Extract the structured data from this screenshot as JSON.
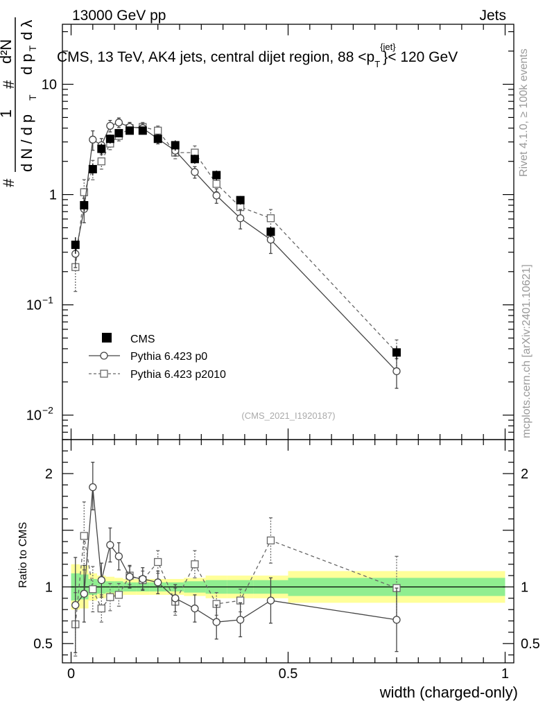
{
  "header": {
    "left": "13000 GeV pp",
    "right": "Jets"
  },
  "side_labels": {
    "rivet": "Rivet 4.1.0, ≥ 100k events",
    "mcplots": "mcplots.cern.ch [arXiv:2401.10621]"
  },
  "watermark": "(CMS_2021_I1920187)",
  "colors": {
    "data": "#000000",
    "p0": "#444444",
    "p2010": "#666666",
    "band_inner": "#90ee90",
    "band_outer": "#ffff99"
  },
  "chart_data": [
    {
      "type": "scatter",
      "title": "CMS, 13 TeV, AK4 jets, central dijet region, 88 <p_T^{jet}< 120 GeV",
      "title_parts": {
        "main": "CMS, 13 TeV, AK4 jets, central dijet region, 88 <p",
        "sup": "{jet}",
        "sub": "T",
        "tail": "}< 120 GeV"
      },
      "ylabel": "1/(dN/dp_T) d²N/(dp_T dλ)",
      "ylabel_parts": {
        "hash": "#",
        "one": "1",
        "den": "d N / d p",
        "sub": "T",
        "num": "d²N",
        "num_den": "d p",
        "lam": "d λ"
      },
      "yscale": "log",
      "ylim": [
        0.006,
        35
      ],
      "xlim": [
        -0.02,
        1.02
      ],
      "yticks": [
        {
          "value": 0.01,
          "label": "10",
          "exp": "−2"
        },
        {
          "value": 0.1,
          "label": "10",
          "exp": "−1"
        },
        {
          "value": 1,
          "label": "1",
          "exp": ""
        },
        {
          "value": 10,
          "label": "10",
          "exp": ""
        }
      ],
      "legend": [
        {
          "label": "CMS",
          "marker": "filled-square"
        },
        {
          "label": "Pythia 6.423 p0",
          "marker": "open-circle",
          "line": "solid"
        },
        {
          "label": "Pythia 6.423 p2010",
          "marker": "open-square",
          "line": "dashed"
        }
      ],
      "legend_position": "lower-left",
      "series": [
        {
          "name": "CMS",
          "x": [
            0.01,
            0.03,
            0.05,
            0.07,
            0.09,
            0.11,
            0.135,
            0.165,
            0.2,
            0.24,
            0.285,
            0.335,
            0.39,
            0.46,
            0.75
          ],
          "y": [
            0.35,
            0.8,
            1.7,
            2.6,
            3.2,
            3.6,
            3.8,
            3.8,
            3.2,
            2.8,
            2.1,
            1.5,
            0.89,
            0.46,
            0.037
          ],
          "err": [
            0.06,
            0.1,
            0.2,
            0.3,
            0.3,
            0.3,
            0.3,
            0.3,
            0.3,
            0.3,
            0.2,
            0.15,
            0.08,
            0.05,
            0.005
          ]
        },
        {
          "name": "Pythia 6.423 p0",
          "x": [
            0.01,
            0.03,
            0.05,
            0.07,
            0.09,
            0.11,
            0.135,
            0.165,
            0.2,
            0.24,
            0.285,
            0.335,
            0.39,
            0.46,
            0.75
          ],
          "y": [
            0.29,
            0.74,
            3.15,
            2.8,
            4.2,
            4.5,
            4.1,
            4.0,
            3.2,
            2.5,
            1.6,
            0.98,
            0.61,
            0.39,
            0.025
          ],
          "err_rel": [
            0.25,
            0.25,
            0.2,
            0.15,
            0.12,
            0.1,
            0.1,
            0.1,
            0.1,
            0.1,
            0.12,
            0.15,
            0.2,
            0.25,
            0.3
          ]
        },
        {
          "name": "Pythia 6.423 p2010",
          "x": [
            0.01,
            0.03,
            0.05,
            0.07,
            0.09,
            0.11,
            0.135,
            0.165,
            0.2,
            0.24,
            0.285,
            0.335,
            0.39,
            0.46,
            0.75
          ],
          "y": [
            0.22,
            1.05,
            1.7,
            2.0,
            2.9,
            3.4,
            4.0,
            4.1,
            3.8,
            2.4,
            2.4,
            1.25,
            0.77,
            0.61,
            0.037
          ],
          "err_rel": [
            0.4,
            0.3,
            0.2,
            0.15,
            0.12,
            0.1,
            0.1,
            0.1,
            0.1,
            0.12,
            0.15,
            0.15,
            0.18,
            0.2,
            0.3
          ]
        }
      ]
    },
    {
      "type": "scatter",
      "ylabel": "Ratio to CMS",
      "xlabel": "width (charged-only)",
      "ylim": [
        0.33,
        2.3
      ],
      "xlim": [
        -0.02,
        1.02
      ],
      "xticks": [
        {
          "value": 0,
          "label": "0"
        },
        {
          "value": 0.5,
          "label": "0.5"
        },
        {
          "value": 1,
          "label": "1"
        }
      ],
      "yticks": [
        {
          "value": 0.5,
          "label": "0.5"
        },
        {
          "value": 1,
          "label": "1"
        },
        {
          "value": 2,
          "label": "2"
        }
      ],
      "reference": 1,
      "bands": {
        "edges": [
          0.0,
          0.02,
          0.04,
          0.06,
          0.08,
          0.1,
          0.12,
          0.15,
          0.18,
          0.22,
          0.26,
          0.31,
          0.36,
          0.42,
          0.5,
          1.0
        ],
        "inner": [
          0.12,
          0.11,
          0.07,
          0.06,
          0.05,
          0.05,
          0.04,
          0.04,
          0.04,
          0.04,
          0.05,
          0.06,
          0.06,
          0.06,
          0.08
        ],
        "outer": [
          0.2,
          0.19,
          0.12,
          0.1,
          0.09,
          0.08,
          0.07,
          0.07,
          0.07,
          0.07,
          0.08,
          0.1,
          0.1,
          0.1,
          0.14
        ]
      },
      "series": [
        {
          "name": "Pythia 6.423 p0",
          "x": [
            0.01,
            0.03,
            0.05,
            0.07,
            0.09,
            0.11,
            0.135,
            0.165,
            0.2,
            0.24,
            0.285,
            0.335,
            0.39,
            0.46,
            0.75
          ],
          "y": [
            0.84,
            0.94,
            1.88,
            1.06,
            1.37,
            1.27,
            1.09,
            1.07,
            1.04,
            0.9,
            0.81,
            0.69,
            0.71,
            0.88,
            0.71
          ],
          "err_lo": [
            0.42,
            0.25,
            0.2,
            0.15,
            0.15,
            0.12,
            0.1,
            0.1,
            0.1,
            0.12,
            0.12,
            0.15,
            0.15,
            0.2,
            0.28
          ],
          "err_hi": [
            0.42,
            0.25,
            0.22,
            0.15,
            0.15,
            0.12,
            0.1,
            0.1,
            0.1,
            0.12,
            0.12,
            0.15,
            0.15,
            0.2,
            0.28
          ]
        },
        {
          "name": "Pythia 6.423 p2010",
          "x": [
            0.01,
            0.03,
            0.05,
            0.07,
            0.09,
            0.11,
            0.135,
            0.165,
            0.2,
            0.24,
            0.285,
            0.335,
            0.39,
            0.46,
            0.75
          ],
          "y": [
            0.67,
            1.45,
            0.98,
            0.81,
            0.91,
            0.93,
            1.1,
            1.06,
            1.22,
            0.87,
            1.2,
            0.85,
            0.88,
            1.41,
            0.99
          ],
          "err_lo": [
            0.28,
            0.3,
            0.2,
            0.12,
            0.12,
            0.1,
            0.08,
            0.08,
            0.1,
            0.12,
            0.12,
            0.1,
            0.1,
            0.2,
            0.28
          ],
          "err_hi": [
            0.28,
            0.3,
            0.2,
            0.12,
            0.12,
            0.1,
            0.08,
            0.08,
            0.1,
            0.12,
            0.12,
            0.1,
            0.1,
            0.2,
            0.28
          ]
        }
      ]
    }
  ]
}
